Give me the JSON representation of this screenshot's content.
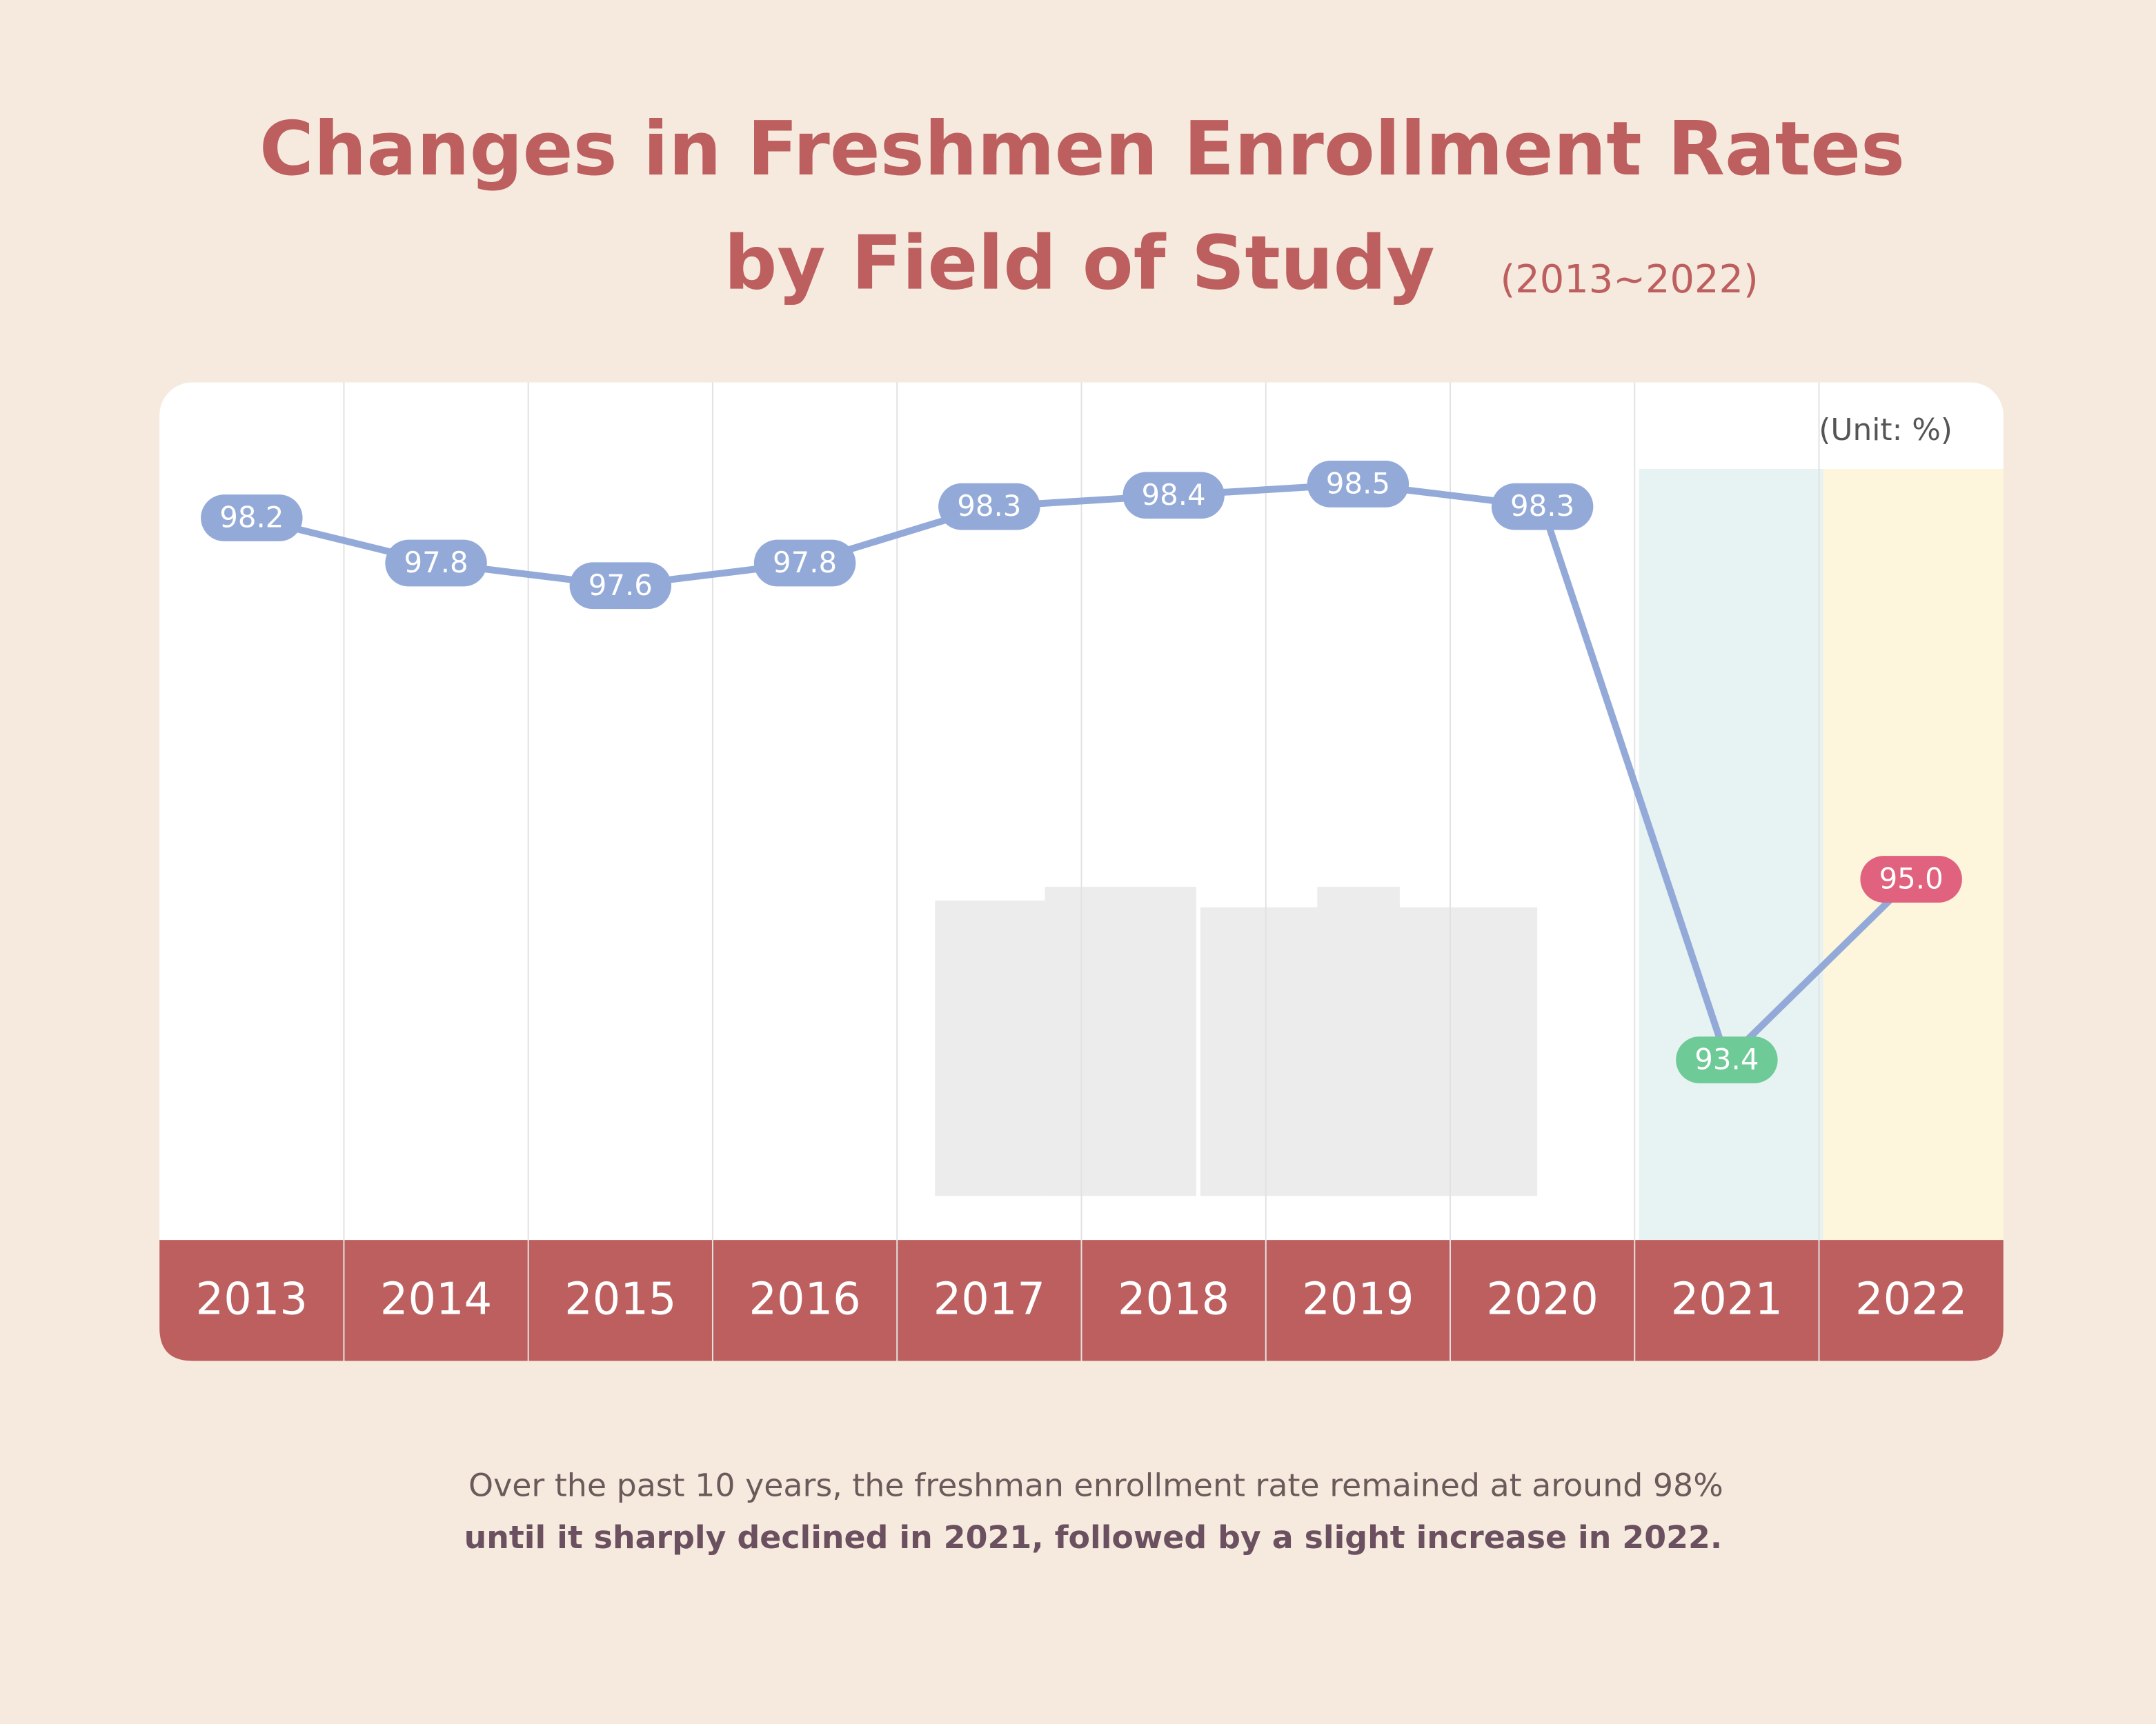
{
  "chart_data": {
    "type": "line",
    "title": "Changes in Freshmen Enrollment Rates",
    "title_line2": "by Field of Study",
    "subtitle": "(2013~2022)",
    "unit_label": "(Unit: %)",
    "categories": [
      "2013",
      "2014",
      "2015",
      "2016",
      "2017",
      "2018",
      "2019",
      "2020",
      "2021",
      "2022"
    ],
    "series": [
      {
        "name": "Freshmen enrollment rate",
        "color": "#93aad9",
        "values": [
          98.2,
          97.8,
          97.6,
          97.8,
          98.3,
          98.4,
          98.5,
          98.3,
          93.4,
          95.0
        ],
        "value_labels": [
          "98.2",
          "97.8",
          "97.6",
          "97.8",
          "98.3",
          "98.4",
          "98.5",
          "98.3",
          "93.4",
          "95.0"
        ],
        "point_colors": [
          "#93aad9",
          "#93aad9",
          "#93aad9",
          "#93aad9",
          "#93aad9",
          "#93aad9",
          "#93aad9",
          "#93aad9",
          "#6ecb97",
          "#e0627f"
        ]
      }
    ],
    "footnote_line1": "Over the past 10 years, the freshman enrollment rate remained at around 98%",
    "footnote_line2": "until it sharply declined in 2021, followed by a slight increase in 2022."
  }
}
